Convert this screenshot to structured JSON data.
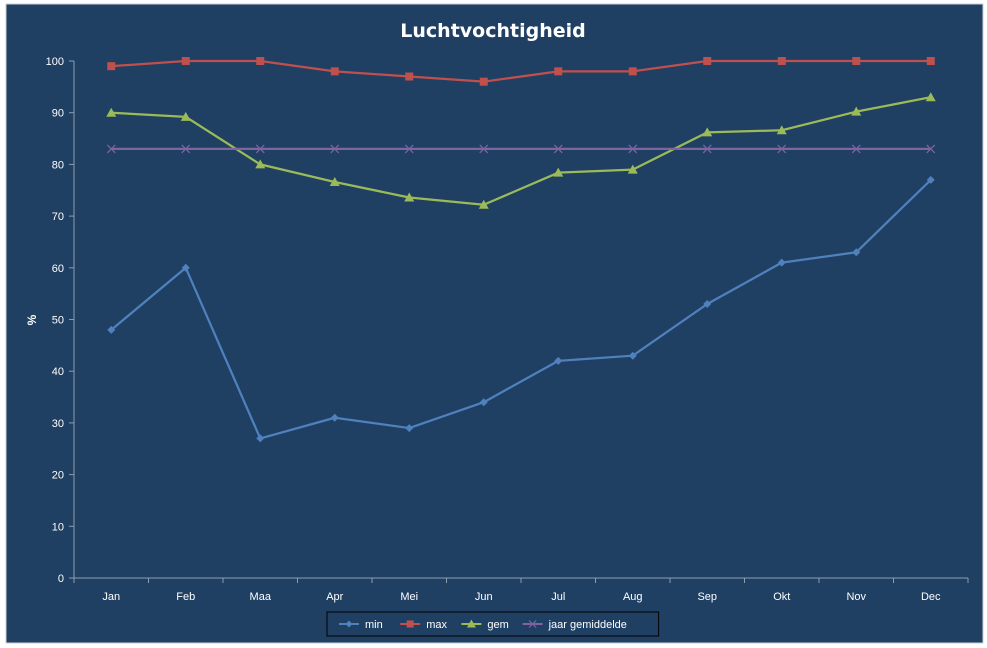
{
  "chart_data": {
    "type": "line",
    "title": "Luchtvochtigheid",
    "xlabel": "",
    "ylabel": "%",
    "categories": [
      "Jan",
      "Feb",
      "Maa",
      "Apr",
      "Mei",
      "Jun",
      "Jul",
      "Aug",
      "Sep",
      "Okt",
      "Nov",
      "Dec"
    ],
    "ylim": [
      0,
      100
    ],
    "yticks": [
      0,
      10,
      20,
      30,
      40,
      50,
      60,
      70,
      80,
      90,
      100
    ],
    "grid": false,
    "legend_position": "bottom",
    "series": [
      {
        "name": "min",
        "color": "#4f81bd",
        "marker": "diamond",
        "values": [
          48,
          60,
          27,
          31,
          29,
          34,
          42,
          43,
          53,
          61,
          63,
          77
        ]
      },
      {
        "name": "max",
        "color": "#c0504d",
        "marker": "square",
        "values": [
          99,
          100,
          100,
          98,
          97,
          96,
          98,
          98,
          100,
          100,
          100,
          100
        ]
      },
      {
        "name": "gem",
        "color": "#9bbb59",
        "marker": "triangle",
        "values": [
          90,
          89.2,
          80,
          76.6,
          73.6,
          72.2,
          78.4,
          79,
          86.2,
          86.6,
          90.2,
          93
        ]
      },
      {
        "name": "jaar gemiddelde",
        "color": "#8064a2",
        "marker": "x",
        "values": [
          83,
          83,
          83,
          83,
          83,
          83,
          83,
          83,
          83,
          83,
          83,
          83
        ]
      }
    ],
    "background_color": "#1f3f63",
    "axis_color": "#8c9db0",
    "text_color": "#ffffff"
  }
}
